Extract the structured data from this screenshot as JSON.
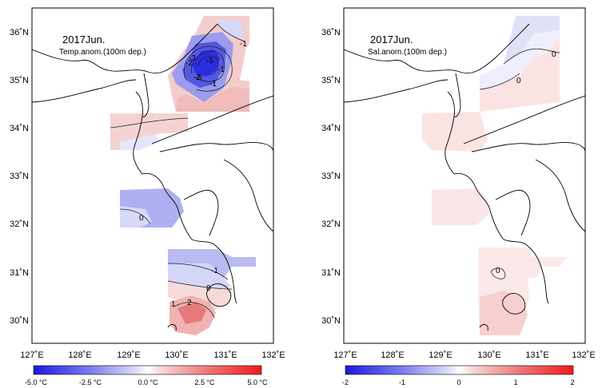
{
  "panels": [
    {
      "title": "2017Jun.",
      "subtitle": "Temp.anom.(100m dep.)",
      "contour_labels": [
        "-1",
        "-2",
        "-3",
        "-5",
        "-5",
        "-1",
        "-2",
        "-1",
        "0",
        "-1",
        "0",
        "1",
        "2"
      ],
      "colorbar_labels": [
        "-5.0 °C",
        "-2.5 °C",
        "0.0 °C",
        "2.5 °C",
        "5.0 °C"
      ],
      "colorbar_values": [
        -5.0,
        -2.5,
        0.0,
        2.5,
        5.0
      ]
    },
    {
      "title": "2017Jun.",
      "subtitle": "Sal.anom.(100m dep.)",
      "contour_labels": [
        "0",
        "0",
        "0"
      ],
      "colorbar_labels": [
        "-2",
        "-1",
        "0",
        "1",
        "2"
      ],
      "colorbar_values": [
        -2,
        -1,
        0,
        1,
        2
      ]
    }
  ],
  "lon_labels": [
    "127˚E",
    "128˚E",
    "129˚E",
    "130˚E",
    "131˚E",
    "132˚E"
  ],
  "lat_labels": [
    "36˚N",
    "35˚N",
    "34˚N",
    "33˚N",
    "32˚N",
    "31˚N",
    "30˚N"
  ],
  "colors": {
    "strong_blue": "#1a1adf",
    "light_blue": "#d8dcf8",
    "neutral": "#ffffff",
    "light_red": "#f8d4d4",
    "strong_red": "#ef2a2a",
    "coast": "#000000"
  }
}
